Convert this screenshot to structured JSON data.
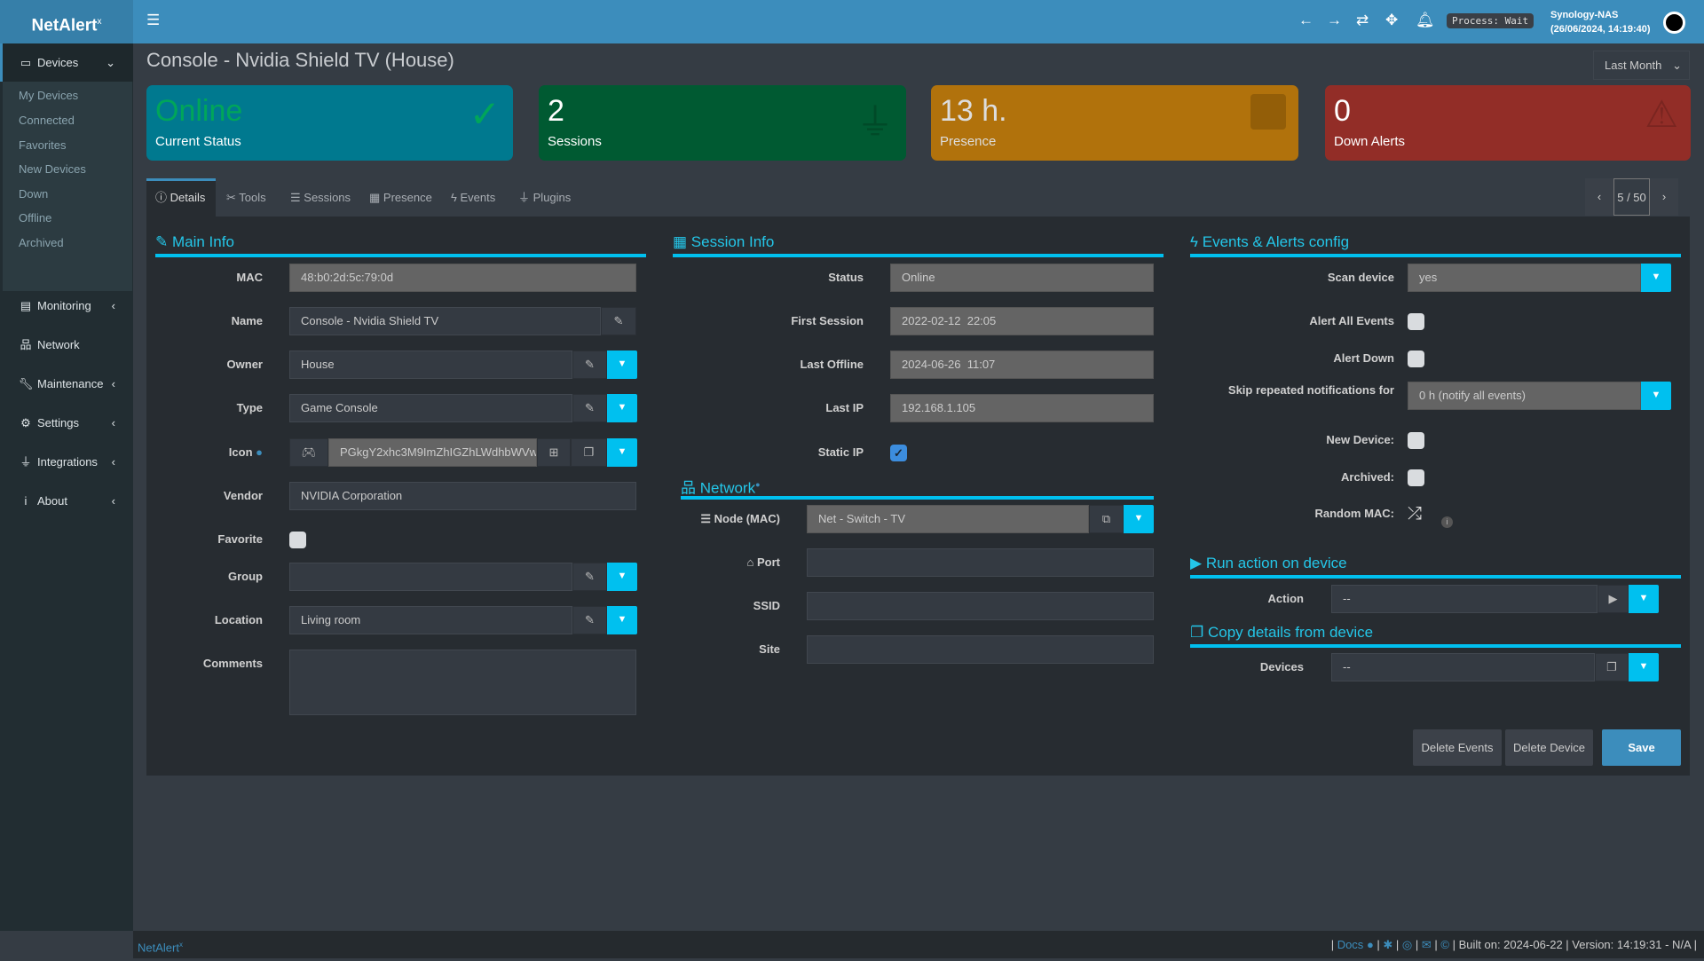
{
  "app": {
    "logo": "NetAlert",
    "logo_sup": "x",
    "process": "Process: Wait",
    "host": "Synology-NAS",
    "datetime": "(26/06/2024, 14:19:40)"
  },
  "header_icons": [
    "bars-icon",
    "arrow-left-icon",
    "arrow-right-icon",
    "refresh-icon",
    "arrows-move-icon",
    "bell-icon"
  ],
  "sidebar": {
    "devices": "Devices",
    "sub": [
      "My Devices",
      "Connected",
      "Favorites",
      "New Devices",
      "Down",
      "Offline",
      "Archived"
    ],
    "items": [
      "Monitoring",
      "Network",
      "Maintenance",
      "Settings",
      "Integrations",
      "About"
    ]
  },
  "page": {
    "title": "Console - Nvidia Shield TV (House)",
    "range": "Last Month"
  },
  "boxes": [
    {
      "value": "Online",
      "label": "Current Status",
      "color": "#00798f",
      "value_color": "#00a65a"
    },
    {
      "value": "2",
      "label": "Sessions",
      "color": "#005a32"
    },
    {
      "value": "13 h.",
      "label": "Presence",
      "color": "#b1720c"
    },
    {
      "value": "0",
      "label": "Down Alerts",
      "color": "#922d27"
    }
  ],
  "tabs": [
    "Details",
    "Tools",
    "Sessions",
    "Presence",
    "Events",
    "Plugins"
  ],
  "pager": "5 / 50",
  "main_info": {
    "title": "Main Info",
    "mac": {
      "label": "MAC",
      "value": "48:b0:2d:5c:79:0d"
    },
    "name": {
      "label": "Name",
      "value": "Console - Nvidia Shield TV"
    },
    "owner": {
      "label": "Owner",
      "value": "House"
    },
    "type": {
      "label": "Type",
      "value": "Game Console"
    },
    "icon": {
      "label": "Icon",
      "value": "PGkgY2xhc3M9ImZhIGZhLWdhbWVw"
    },
    "vendor": {
      "label": "Vendor",
      "value": "NVIDIA Corporation"
    },
    "favorite": {
      "label": "Favorite",
      "checked": false
    },
    "group": {
      "label": "Group",
      "value": ""
    },
    "location": {
      "label": "Location",
      "value": "Living room"
    },
    "comments": {
      "label": "Comments",
      "value": ""
    }
  },
  "session_info": {
    "title": "Session Info",
    "status": {
      "label": "Status",
      "value": "Online"
    },
    "first": {
      "label": "First Session",
      "value": "2022-02-12  22:05"
    },
    "last_offline": {
      "label": "Last Offline",
      "value": "2024-06-26  11:07"
    },
    "last_ip": {
      "label": "Last IP",
      "value": "192.168.1.105"
    },
    "static_ip": {
      "label": "Static IP",
      "checked": true
    }
  },
  "network": {
    "title": "Network",
    "node": {
      "label": "Node (MAC)",
      "value": "Net - Switch - TV"
    },
    "port": {
      "label": "Port",
      "value": ""
    },
    "ssid": {
      "label": "SSID",
      "value": ""
    },
    "site": {
      "label": "Site",
      "value": ""
    }
  },
  "events": {
    "title": "Events & Alerts config",
    "scan": {
      "label": "Scan device",
      "value": "yes"
    },
    "alert_all": {
      "label": "Alert All Events",
      "checked": false
    },
    "alert_down": {
      "label": "Alert Down",
      "checked": false
    },
    "skip": {
      "label": "Skip repeated notifications for",
      "value": "0 h (notify all events)"
    },
    "new_device": {
      "label": "New Device:",
      "checked": false
    },
    "archived": {
      "label": "Archived:",
      "checked": false
    },
    "random_mac": {
      "label": "Random MAC:"
    }
  },
  "run_action": {
    "title": "Run action on device",
    "label": "Action",
    "value": "--"
  },
  "copy": {
    "title": "Copy details from device",
    "label": "Devices",
    "value": "--"
  },
  "buttons": {
    "delete_events": "Delete Events",
    "delete_device": "Delete Device",
    "save": "Save"
  },
  "footer": {
    "brand": "NetAlert",
    "brand_sup": "x",
    "docs": "Docs",
    "built": "Built on: 2024-06-22",
    "version": "Version: 14:19:31 - N/A"
  }
}
